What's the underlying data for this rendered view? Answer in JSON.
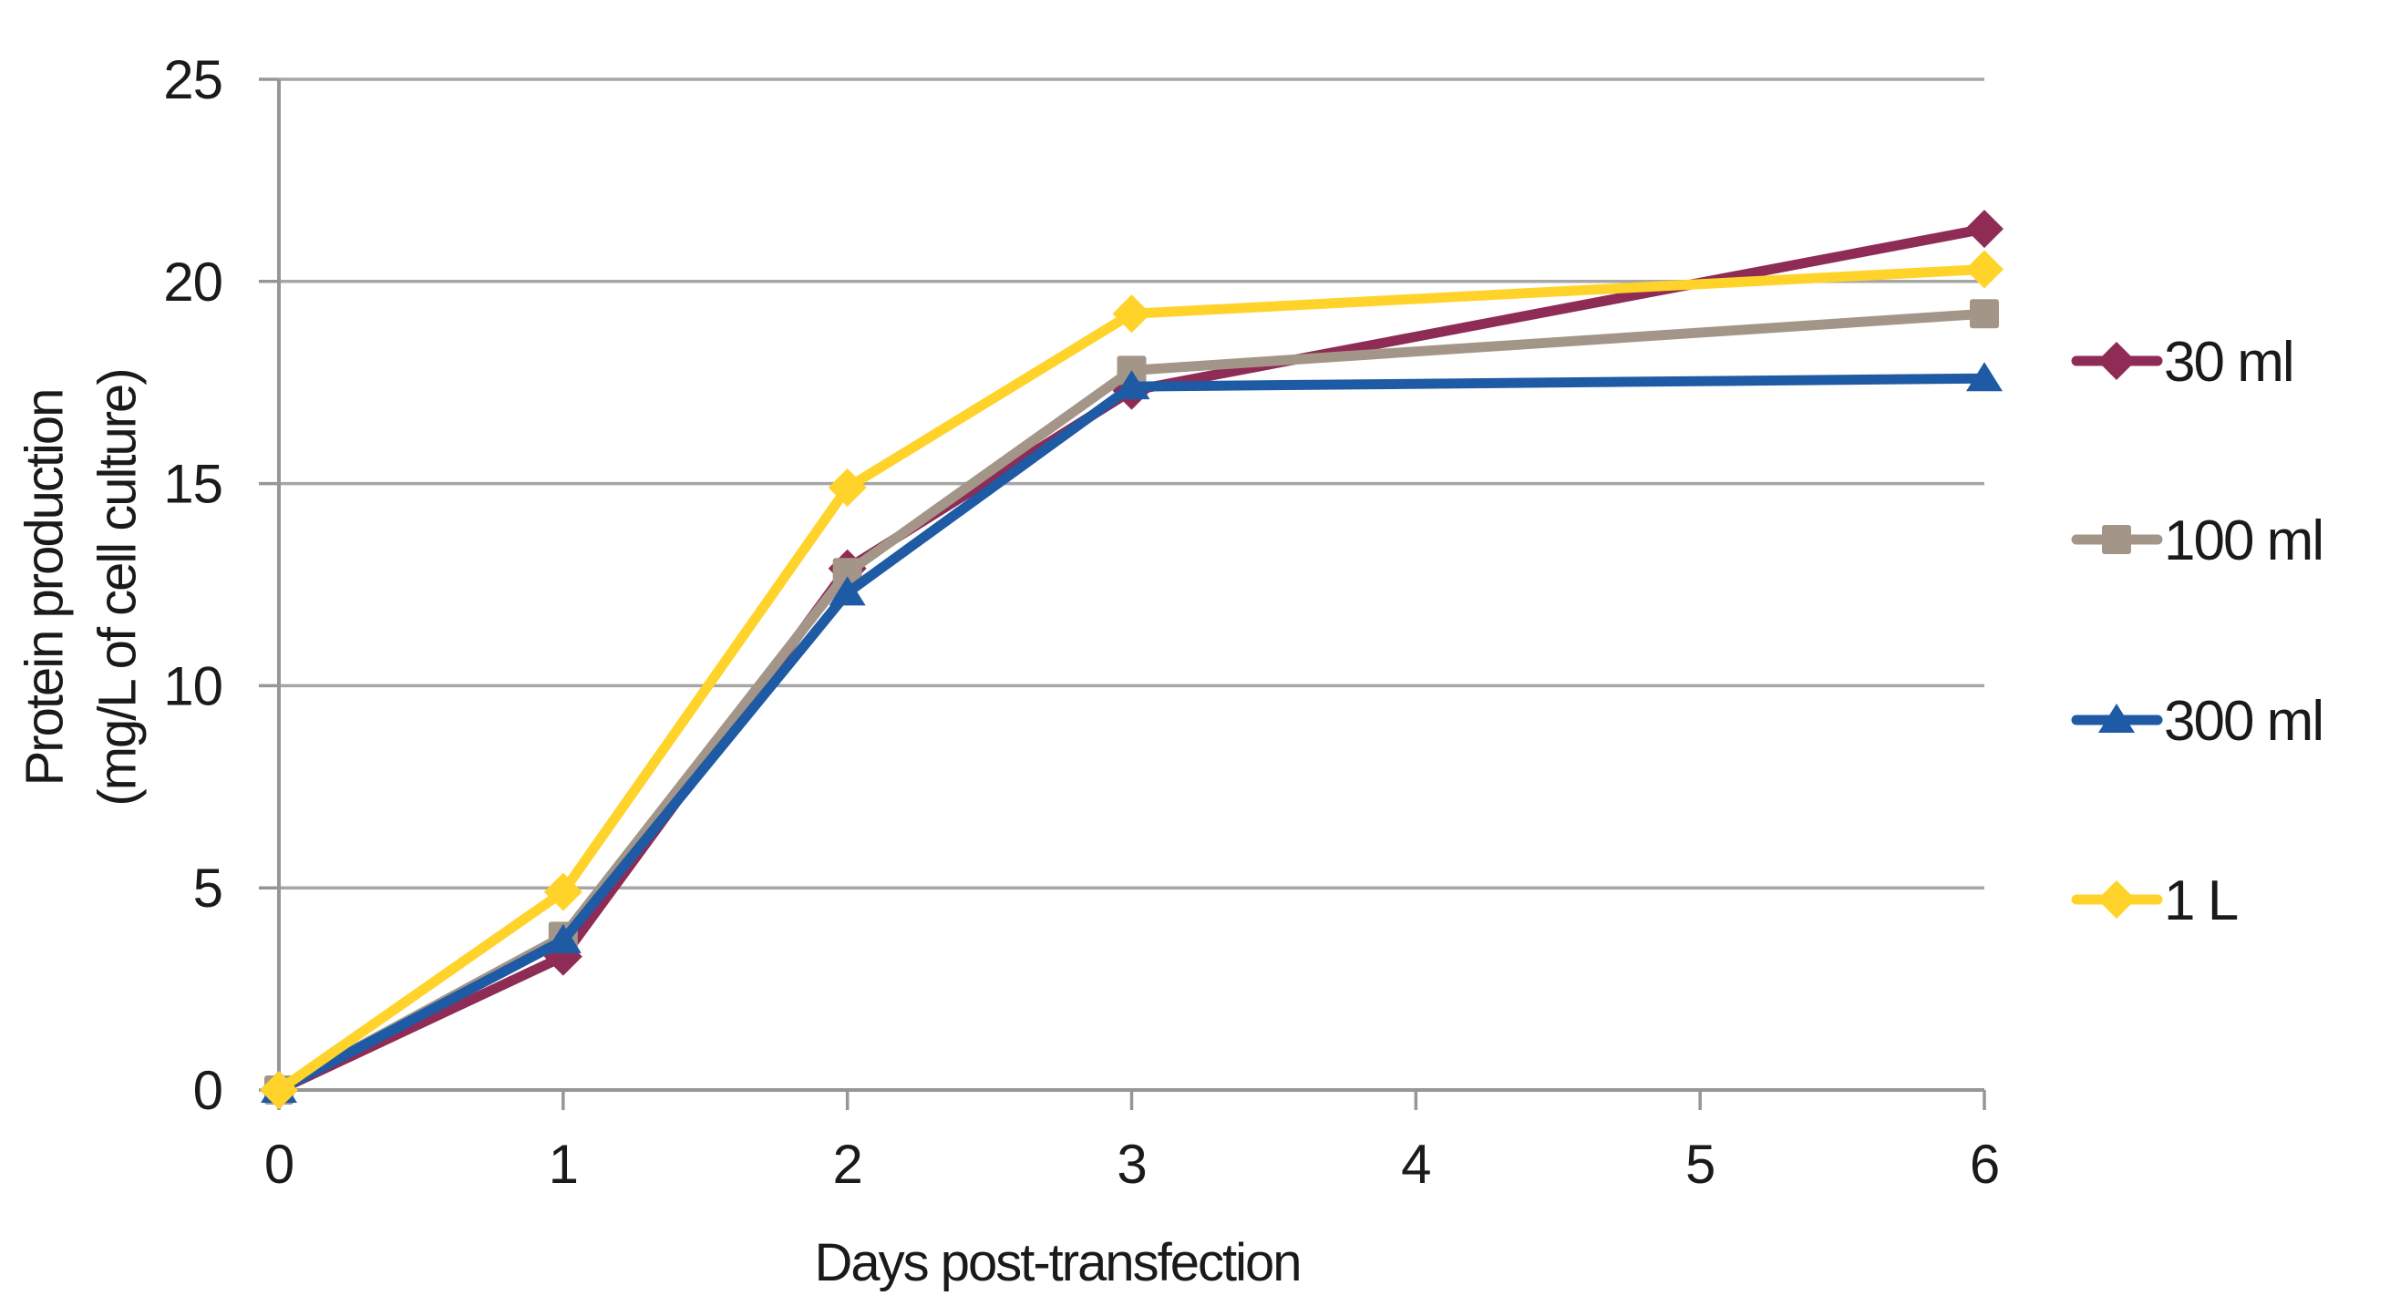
{
  "chart_data": {
    "type": "line",
    "title": "",
    "xlabel": "Days post-transfection",
    "ylabel": "Protein production (mg/L of cell culture)",
    "ylabel_lines": [
      "Protein production",
      "(mg/L of cell culture)"
    ],
    "x": [
      0,
      1,
      2,
      3,
      6
    ],
    "xticks": [
      "0",
      "1",
      "2",
      "3",
      "4",
      "5",
      "6"
    ],
    "xtick_values": [
      0,
      1,
      2,
      3,
      4,
      5,
      6
    ],
    "yticks": [
      "0",
      "5",
      "10",
      "15",
      "20",
      "25"
    ],
    "ytick_values": [
      0,
      5,
      10,
      15,
      20,
      25
    ],
    "xlim": [
      0,
      6
    ],
    "ylim": [
      0,
      25
    ],
    "grid": "horizontal-only",
    "legend_position": "right-outside",
    "series": [
      {
        "name": "30 ml",
        "marker": "diamond",
        "color": "#8E2C55",
        "values": [
          0,
          3.3,
          12.9,
          17.3,
          21.3
        ]
      },
      {
        "name": "100 ml",
        "marker": "square",
        "color": "#A39689",
        "values": [
          0,
          3.8,
          12.8,
          17.8,
          19.2
        ]
      },
      {
        "name": "300 ml",
        "marker": "triangle",
        "color": "#1F5AA5",
        "values": [
          0,
          3.7,
          12.3,
          17.4,
          17.6
        ]
      },
      {
        "name": "1 L",
        "marker": "diamond",
        "color": "#FFD32A",
        "values": [
          0,
          4.9,
          14.9,
          19.2,
          20.3
        ]
      }
    ],
    "colors": {
      "grid": "#A6A6A6",
      "axis": "#969696",
      "text": "#1A1A1A",
      "background": "#FFFFFF"
    }
  }
}
